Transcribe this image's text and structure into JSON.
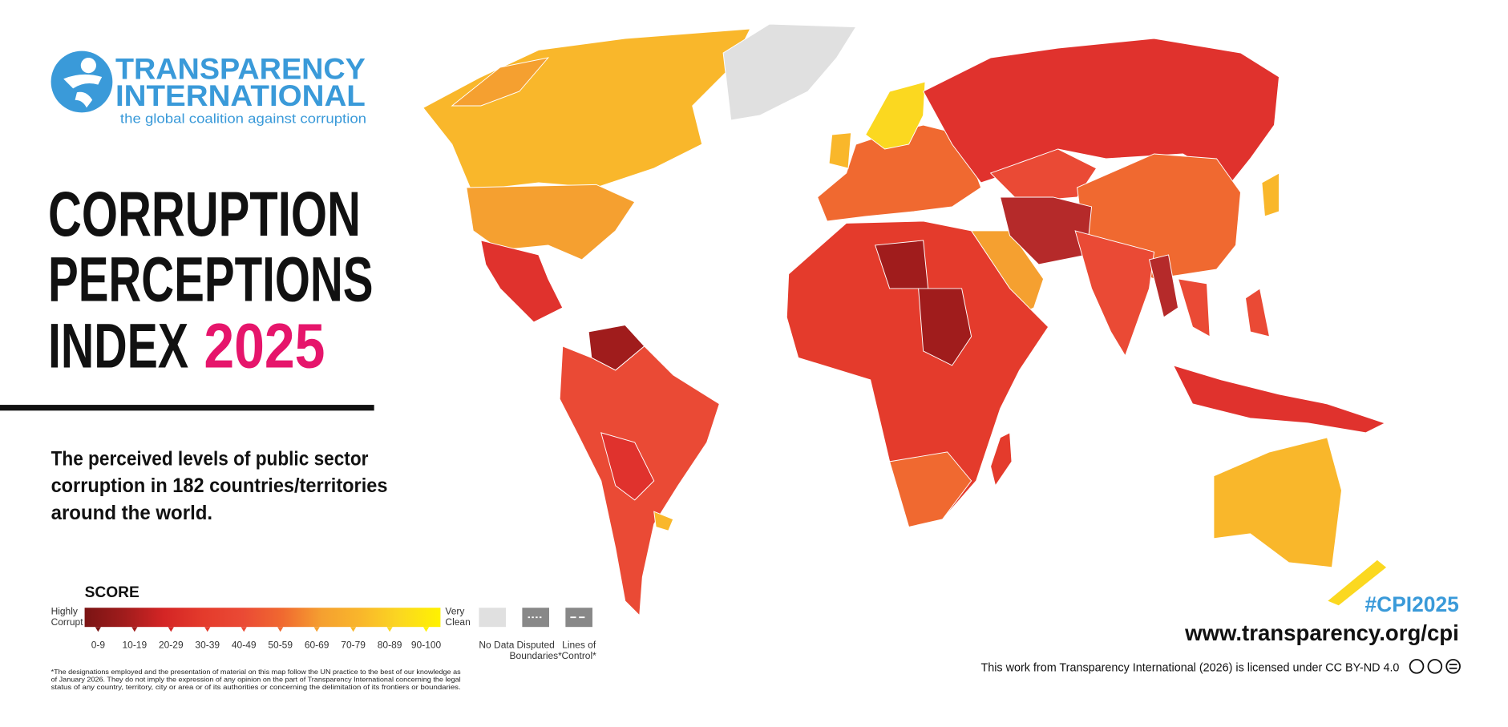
{
  "logo": {
    "line1": "TRANSPARENCY",
    "line2": "INTERNATIONAL",
    "tagline": "the global coalition against corruption"
  },
  "title": {
    "line1": "CORRUPTION",
    "line2": "PERCEPTIONS",
    "line3": "INDEX",
    "year": "2025"
  },
  "description": {
    "lines": [
      "The perceived levels of public sector",
      "corruption in 182 countries/territories",
      "around the world."
    ]
  },
  "legend": {
    "heading": "SCORE",
    "low_label": [
      "Highly",
      "Corrupt"
    ],
    "high_label": [
      "Very",
      "Clean"
    ],
    "bins": [
      {
        "label": "0-9",
        "color": "#7a1414"
      },
      {
        "label": "10-19",
        "color": "#a01c1c"
      },
      {
        "label": "20-29",
        "color": "#d42525"
      },
      {
        "label": "30-39",
        "color": "#e43b2c"
      },
      {
        "label": "40-49",
        "color": "#ea4a35"
      },
      {
        "label": "50-59",
        "color": "#f06930"
      },
      {
        "label": "60-69",
        "color": "#f5a030"
      },
      {
        "label": "70-79",
        "color": "#f9b72b"
      },
      {
        "label": "80-89",
        "color": "#fbd820"
      },
      {
        "label": "90-100",
        "color": "#fff200"
      }
    ],
    "no_data": "No Data",
    "disputed": [
      "Disputed",
      "Boundaries*"
    ],
    "lines_of_control": [
      "Lines of",
      "Control*"
    ]
  },
  "footnote": {
    "lines": [
      "*The designations employed and the presentation of material on this map follow the UN practice to the best of our knowledge as",
      "of January 2026. They do not imply the expression of any opinion on the part of Transparency International concerning the legal",
      "status of any country, territory, city or area or of its authorities or concerning the delimitation of its frontiers or boundaries."
    ]
  },
  "hashtag": "#CPI2025",
  "url": "www.transparency.org/cpi",
  "license": "This work from Transparency International (2026) is licensed under CC BY-ND 4.0"
}
